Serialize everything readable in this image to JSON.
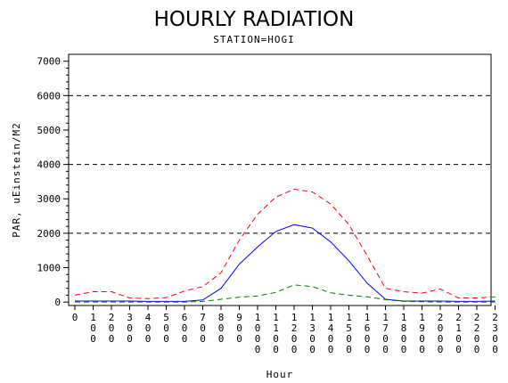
{
  "chart_data": {
    "type": "line",
    "title": "HOURLY RADIATION",
    "subtitle": "STATION=HOGI",
    "xlabel": "Hour",
    "ylabel": "PAR, uEinstein/M2",
    "ylim": [
      -100,
      7200
    ],
    "yticks": [
      0,
      1000,
      2000,
      3000,
      4000,
      5000,
      6000,
      7000
    ],
    "y_tick_labels": [
      "0",
      "1000",
      "2000",
      "3000",
      "4000",
      "5000",
      "6000",
      "7000"
    ],
    "reference_lines": [
      2000,
      4000,
      6000
    ],
    "x_tick_labels": [
      "0",
      "100",
      "200",
      "300",
      "400",
      "500",
      "600",
      "700",
      "800",
      "900",
      "1000",
      "1100",
      "1200",
      "1300",
      "1400",
      "1500",
      "1600",
      "1700",
      "1800",
      "1900",
      "2000",
      "2100",
      "2200",
      "2300"
    ],
    "x": [
      0,
      100,
      200,
      300,
      400,
      500,
      600,
      700,
      800,
      900,
      1000,
      1100,
      1200,
      1300,
      1400,
      1500,
      1600,
      1700,
      1800,
      1900,
      2000,
      2100,
      2200,
      2300
    ],
    "series": [
      {
        "color": "#ff0000",
        "dash": "dashed",
        "values": [
          200,
          300,
          300,
          120,
          100,
          130,
          320,
          450,
          850,
          1800,
          2550,
          3050,
          3280,
          3200,
          2850,
          2250,
          1350,
          400,
          300,
          260,
          380,
          120,
          120,
          150
        ]
      },
      {
        "color": "#0000ff",
        "dash": "solid",
        "values": [
          30,
          30,
          30,
          30,
          20,
          20,
          20,
          60,
          400,
          1100,
          1600,
          2050,
          2250,
          2150,
          1750,
          1200,
          550,
          80,
          30,
          30,
          30,
          20,
          20,
          30
        ]
      },
      {
        "color": "#008000",
        "dash": "dashed",
        "values": [
          0,
          0,
          0,
          0,
          0,
          0,
          0,
          20,
          80,
          140,
          180,
          280,
          500,
          450,
          270,
          200,
          150,
          70,
          20,
          10,
          0,
          0,
          0,
          0
        ]
      }
    ]
  }
}
